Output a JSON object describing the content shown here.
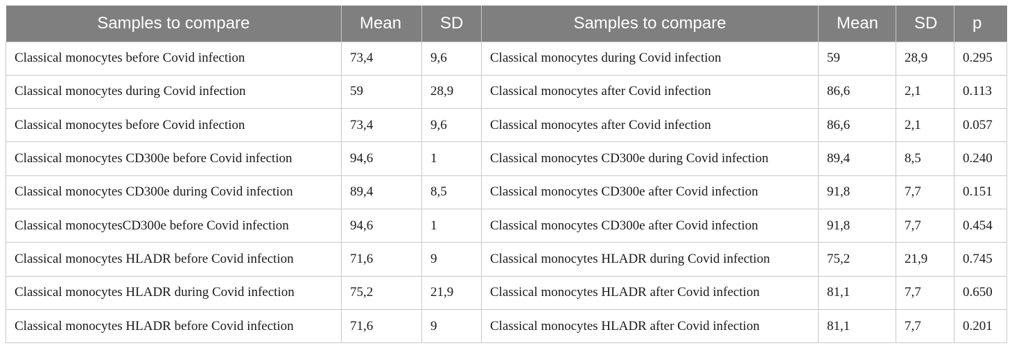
{
  "table": {
    "headers": [
      "Samples to compare",
      "Mean",
      "SD",
      "Samples to compare",
      "Mean",
      "SD",
      "p"
    ],
    "rows": [
      [
        "Classical monocytes before Covid infection",
        "73,4",
        "9,6",
        "Classical monocytes during Covid infection",
        "59",
        "28,9",
        "0.295"
      ],
      [
        "Classical monocytes during Covid infection",
        "59",
        "28,9",
        "Classical monocytes after Covid infection",
        "86,6",
        "2,1",
        "0.113"
      ],
      [
        "Classical monocytes before Covid infection",
        "73,4",
        "9,6",
        "Classical monocytes after Covid infection",
        "86,6",
        "2,1",
        "0.057"
      ],
      [
        "Classical monocytes CD300e before Covid infection",
        "94,6",
        "1",
        "Classical monocytes CD300e during Covid infection",
        "89,4",
        "8,5",
        "0.240"
      ],
      [
        "Classical monocytes CD300e during Covid infection",
        "89,4",
        "8,5",
        "Classical monocytes CD300e after Covid infection",
        "91,8",
        "7,7",
        "0.151"
      ],
      [
        "Classical monocytesCD300e before Covid infection",
        "94,6",
        "1",
        "Classical monocytes CD300e after Covid infection",
        "91,8",
        "7,7",
        "0.454"
      ],
      [
        "Classical monocytes HLADR before Covid infection",
        "71,6",
        "9",
        "Classical monocytes HLADR during Covid infection",
        "75,2",
        "21,9",
        "0.745"
      ],
      [
        "Classical monocytes HLADR during Covid infection",
        "75,2",
        "21,9",
        "Classical monocytes HLADR after Covid infection",
        "81,1",
        "7,7",
        "0.650"
      ],
      [
        "Classical monocytes HLADR before Covid infection",
        "71,6",
        "9",
        "Classical monocytes HLADR after Covid infection",
        "81,1",
        "7,7",
        "0.201"
      ]
    ]
  },
  "colors": {
    "header_bg": "#7f7f7f",
    "header_text": "#ffffff",
    "border": "#c8c8c8",
    "cell_text": "#1a1a1a"
  }
}
